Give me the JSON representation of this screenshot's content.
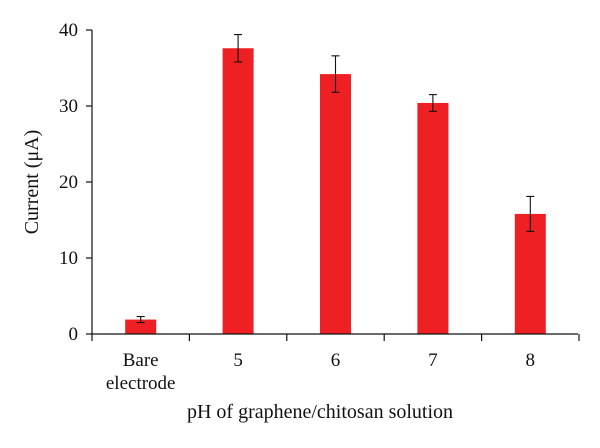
{
  "chart_data": {
    "type": "bar",
    "categories": [
      [
        "Bare",
        "electrode"
      ],
      [
        "5"
      ],
      [
        "6"
      ],
      [
        "7"
      ],
      [
        "8"
      ]
    ],
    "values": [
      1.9,
      37.6,
      34.2,
      30.4,
      15.8
    ],
    "error": [
      0.4,
      1.8,
      2.4,
      1.1,
      2.3
    ],
    "xlabel": "pH of graphene/chitosan solution",
    "ylabel": "Current (μA)",
    "ylim": [
      0,
      40
    ],
    "yticks": [
      0,
      10,
      20,
      30,
      40
    ],
    "grid": false,
    "colors": {
      "bar": "#ee2024",
      "axis": "#111111",
      "error_bar": "#111111"
    }
  }
}
